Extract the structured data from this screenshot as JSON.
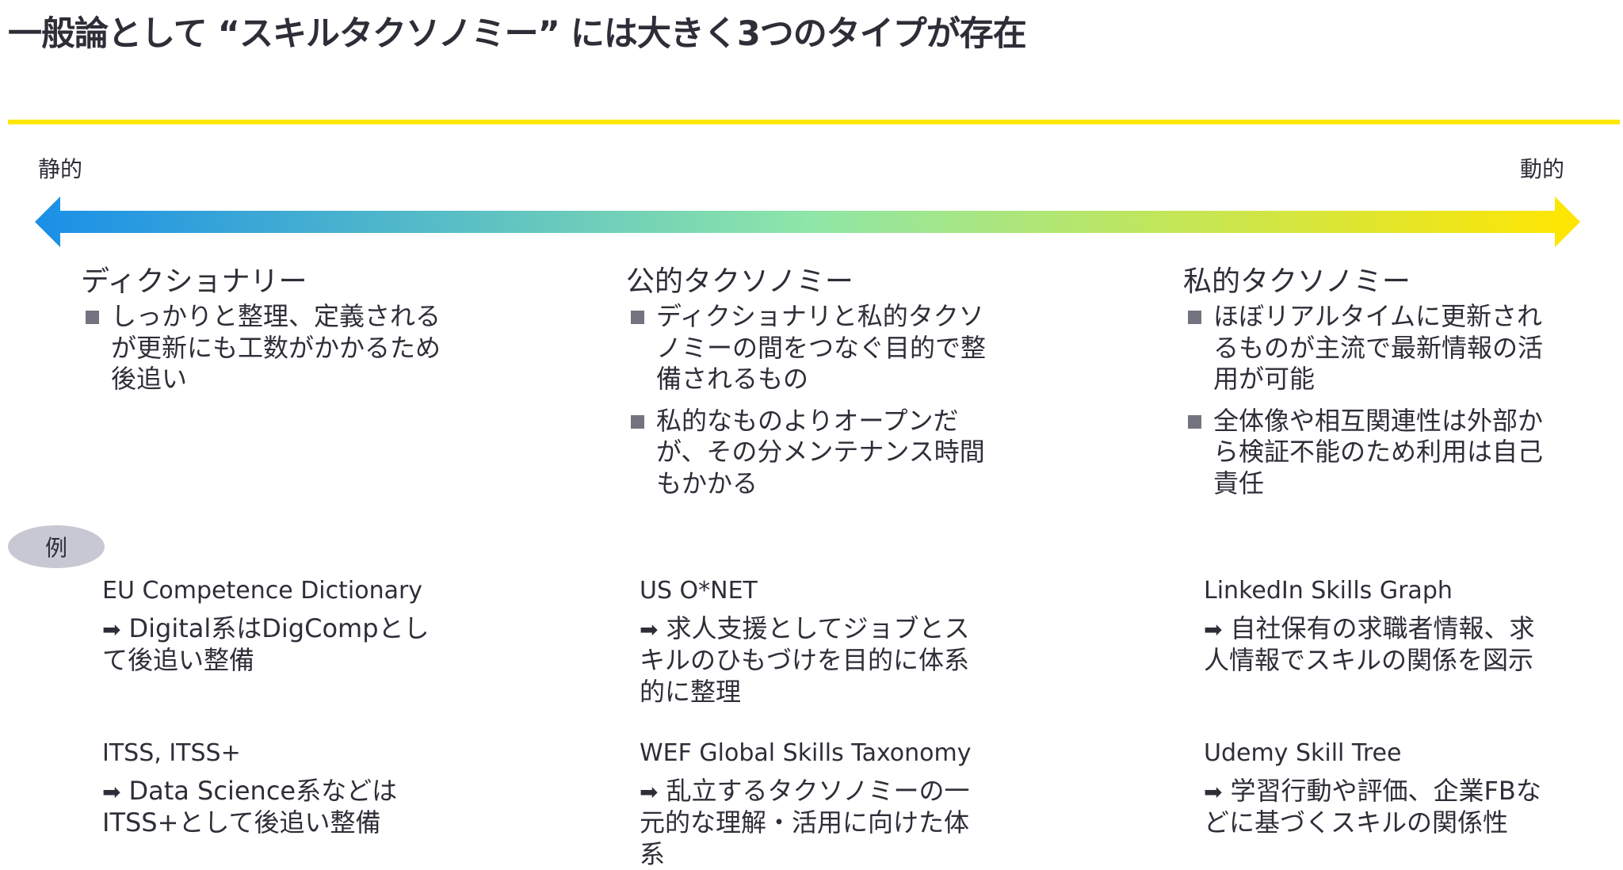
{
  "title": "一般論として “スキルタクソノミー” には大きく3つのタイプが存在",
  "colors": {
    "accent": "#ffe600",
    "arrow_start": "#1a8fe8",
    "arrow_mid": "#8ee6a8",
    "arrow_end": "#ffe600",
    "text": "#2e2e38"
  },
  "scale": {
    "left_label": "静的",
    "right_label": "動的"
  },
  "columns": [
    {
      "heading": "ディクショナリー",
      "bullets": [
        "しっかりと整理、定義されるが更新にも工数がかかるため後追い"
      ]
    },
    {
      "heading": "公的タクソノミー",
      "bullets": [
        "ディクショナリと私的タクソノミーの間をつなぐ目的で整備されるもの",
        "私的なものよりオープンだが、その分メンテナンス時間もかかる"
      ]
    },
    {
      "heading": "私的タクソノミー",
      "bullets": [
        "ほぼリアルタイムに更新されるものが主流で最新情報の活用が可能",
        "全体像や相互関連性は外部から検証不能のため利用は自己責任"
      ]
    }
  ],
  "examples_label": "例",
  "arrow_icon": "➡",
  "examples": [
    [
      {
        "name": "EU Competence Dictionary",
        "desc": "Digital系はDigCompとして後追い整備"
      },
      {
        "name": "ITSS, ITSS+",
        "desc": "Data Science系などはITSS+として後追い整備"
      }
    ],
    [
      {
        "name": "US O*NET",
        "desc": "求人支援としてジョブとスキルのひもづけを目的に体系的に整理"
      },
      {
        "name": "WEF Global Skills Taxonomy",
        "desc": "乱立するタクソノミーの一元的な理解・活用に向けた体系"
      }
    ],
    [
      {
        "name": "LinkedIn Skills Graph",
        "desc": "自社保有の求職者情報、求人情報でスキルの関係を図示"
      },
      {
        "name": "Udemy Skill Tree",
        "desc": "学習行動や評価、企業FBなどに基づくスキルの関係性"
      }
    ]
  ]
}
